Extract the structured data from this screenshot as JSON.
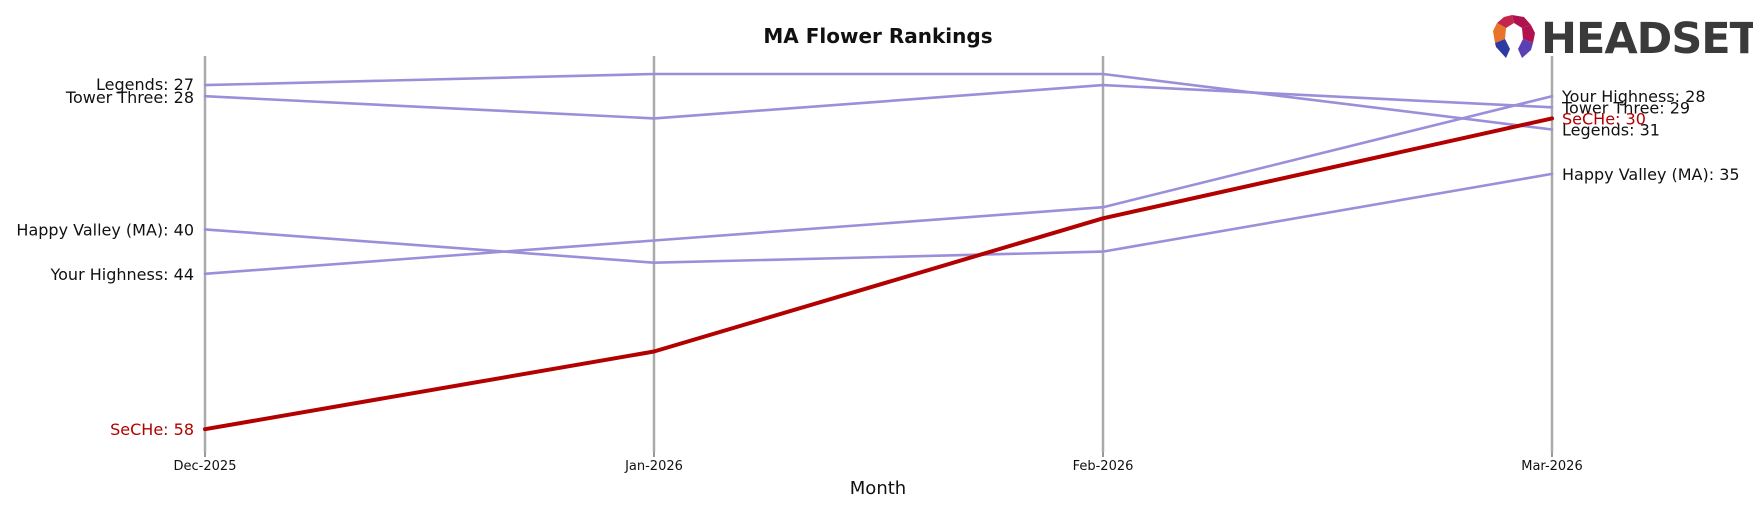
{
  "brand": {
    "name": "HEADSET",
    "colors": [
      "#e8432a",
      "#b0124f",
      "#2e2a8f",
      "#6a3fb5"
    ]
  },
  "colors": {
    "highlight": "#b30000",
    "others": "#9b8fd9",
    "month_rules": "#aaaaaa"
  },
  "chart_data": {
    "type": "line",
    "title": "MA Flower Rankings",
    "xlabel": "Month",
    "ylabel": "",
    "categories": [
      "Dec-2025",
      "Jan-2026",
      "Feb-2026",
      "Mar-2026"
    ],
    "y_inverted": true,
    "ylim": [
      26,
      60
    ],
    "grid": false,
    "series": [
      {
        "name": "Legends",
        "values": [
          27,
          26,
          26,
          31
        ],
        "highlight": false
      },
      {
        "name": "Tower Three",
        "values": [
          28,
          30,
          27,
          29
        ],
        "highlight": false
      },
      {
        "name": "Happy Valley (MA)",
        "values": [
          40,
          43,
          42,
          35
        ],
        "highlight": false
      },
      {
        "name": "Your Highness",
        "values": [
          44,
          41,
          38,
          28
        ],
        "highlight": false
      },
      {
        "name": "SeCHe",
        "values": [
          58,
          51,
          39,
          30
        ],
        "highlight": true
      }
    ],
    "start_labels": [
      "Legends: 27",
      "Tower Three: 28",
      "Happy Valley (MA): 40",
      "Your Highness: 44",
      "SeCHe: 58"
    ],
    "end_labels": [
      "Legends: 31",
      "Tower Three: 29",
      "Happy Valley (MA): 35",
      "Your Highness: 28",
      "SeCHe: 30"
    ]
  }
}
